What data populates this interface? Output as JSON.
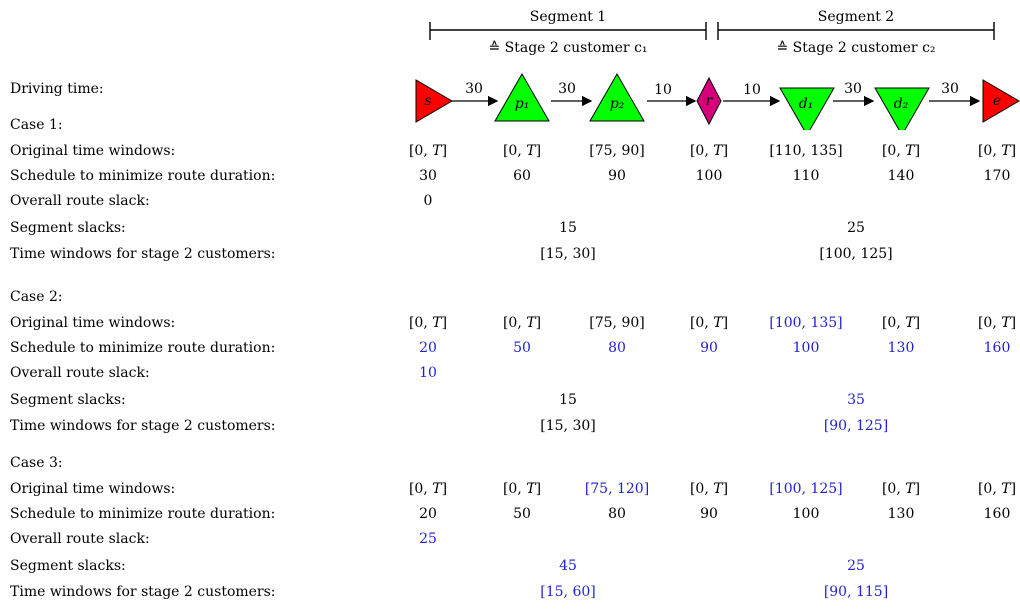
{
  "segments": [
    {
      "title": "Segment 1",
      "subtitle": "≙ Stage 2 customer c₁"
    },
    {
      "title": "Segment 2",
      "subtitle": "≙ Stage 2 customer c₂"
    }
  ],
  "driving_label": "Driving time:",
  "nodes": [
    {
      "label": "s",
      "shape": "triangle-right",
      "color": "#ff0000"
    },
    {
      "label": "p₁",
      "shape": "triangle-up",
      "color": "#00ff00"
    },
    {
      "label": "p₂",
      "shape": "triangle-up",
      "color": "#00ff00"
    },
    {
      "label": "r",
      "shape": "diamond",
      "color": "#d6007a"
    },
    {
      "label": "d₁",
      "shape": "triangle-down",
      "color": "#00ff00"
    },
    {
      "label": "d₂",
      "shape": "triangle-down",
      "color": "#00ff00"
    },
    {
      "label": "e",
      "shape": "triangle-right",
      "color": "#ff0000"
    }
  ],
  "edges": [
    "30",
    "30",
    "10",
    "10",
    "30",
    "30"
  ],
  "row_labels": {
    "tw": "Original time windows:",
    "sched": "Schedule to minimize route duration:",
    "overall": "Overall route slack:",
    "seg": "Segment slacks:",
    "stage2": "Time windows for stage 2 customers:"
  },
  "cases": [
    {
      "title": "Case 1:",
      "time_windows": [
        "[0, T]",
        "[0, T]",
        "[75, 90]",
        "[0, T]",
        "[110, 135]",
        "[0, T]",
        "[0, T]"
      ],
      "time_windows_changed": [
        false,
        false,
        false,
        false,
        false,
        false,
        false
      ],
      "schedule": [
        "30",
        "60",
        "90",
        "100",
        "110",
        "140",
        "170"
      ],
      "schedule_changed": false,
      "overall_slack": "0",
      "overall_changed": false,
      "segment_slacks": [
        "15",
        "25"
      ],
      "segment_slacks_changed": [
        false,
        false
      ],
      "stage2_windows": [
        "[15, 30]",
        "[100, 125]"
      ],
      "stage2_changed": [
        false,
        false
      ]
    },
    {
      "title": "Case 2:",
      "time_windows": [
        "[0, T]",
        "[0, T]",
        "[75, 90]",
        "[0, T]",
        "[100, 135]",
        "[0, T]",
        "[0, T]"
      ],
      "time_windows_changed": [
        false,
        false,
        false,
        false,
        true,
        false,
        false
      ],
      "schedule": [
        "20",
        "50",
        "80",
        "90",
        "100",
        "130",
        "160"
      ],
      "schedule_changed": true,
      "overall_slack": "10",
      "overall_changed": true,
      "segment_slacks": [
        "15",
        "35"
      ],
      "segment_slacks_changed": [
        false,
        true
      ],
      "stage2_windows": [
        "[15, 30]",
        "[90, 125]"
      ],
      "stage2_changed": [
        false,
        true
      ]
    },
    {
      "title": "Case 3:",
      "time_windows": [
        "[0, T]",
        "[0, T]",
        "[75, 120]",
        "[0, T]",
        "[100, 125]",
        "[0, T]",
        "[0, T]"
      ],
      "time_windows_changed": [
        false,
        false,
        true,
        false,
        true,
        false,
        false
      ],
      "schedule": [
        "20",
        "50",
        "80",
        "90",
        "100",
        "130",
        "160"
      ],
      "schedule_changed": false,
      "overall_slack": "25",
      "overall_changed": true,
      "segment_slacks": [
        "45",
        "25"
      ],
      "segment_slacks_changed": [
        true,
        true
      ],
      "stage2_windows": [
        "[15, 60]",
        "[90, 115]"
      ],
      "stage2_changed": [
        true,
        true
      ]
    }
  ],
  "colors": {
    "changed": "#1f1fd6",
    "text": "#000000"
  }
}
